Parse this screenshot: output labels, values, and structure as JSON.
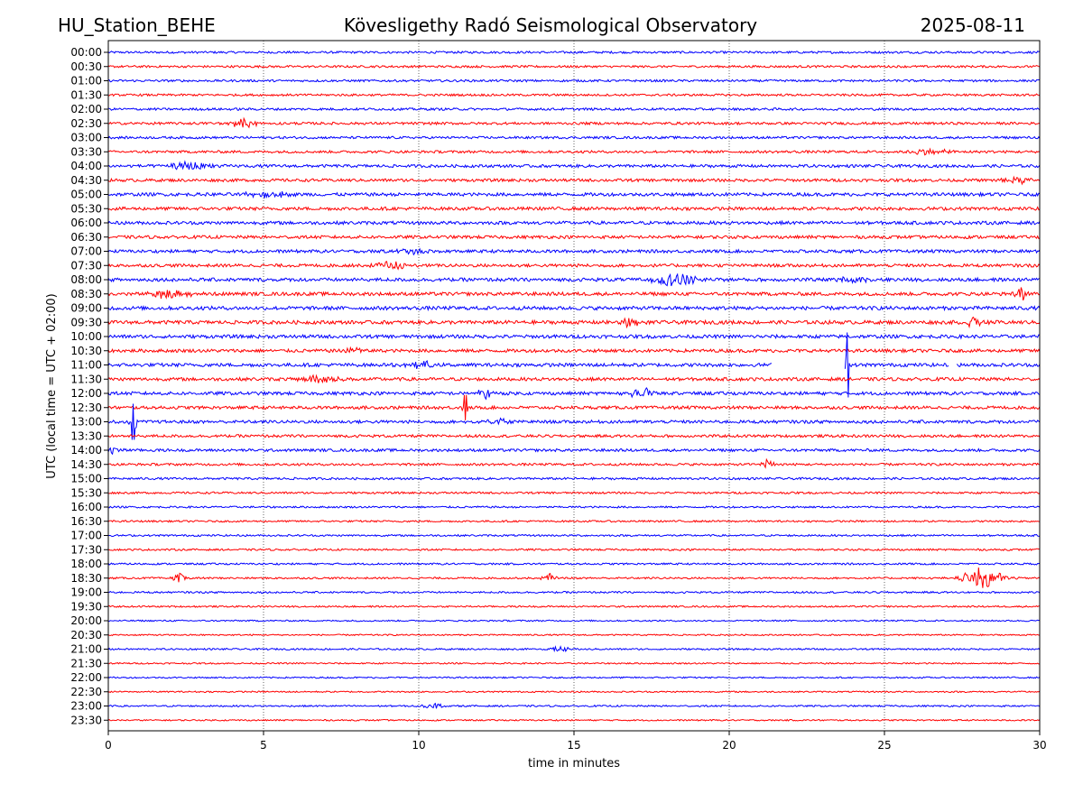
{
  "header": {
    "station": "HU_Station_BEHE",
    "observatory": "Kövesligethy Radó Seismological Observatory",
    "date": "2025-08-11"
  },
  "chart_data": {
    "type": "line",
    "title": "Kövesligethy Radó Seismological Observatory",
    "xlabel": "time in minutes",
    "ylabel": "UTC (local time = UTC + 02:00)",
    "xlim": [
      0,
      30
    ],
    "x_ticks": [
      "0",
      "5",
      "10",
      "15",
      "20",
      "25",
      "30"
    ],
    "grid": "vertical dotted",
    "colors": {
      "even_rows": "#0000ff",
      "odd_rows": "#ff0000"
    },
    "rows": [
      "00:00",
      "00:30",
      "01:00",
      "01:30",
      "02:00",
      "02:30",
      "03:00",
      "03:30",
      "04:00",
      "04:30",
      "05:00",
      "05:30",
      "06:00",
      "06:30",
      "07:00",
      "07:30",
      "08:00",
      "08:30",
      "09:00",
      "09:30",
      "10:00",
      "10:30",
      "11:00",
      "11:30",
      "12:00",
      "12:30",
      "13:00",
      "13:30",
      "14:00",
      "14:30",
      "15:00",
      "15:30",
      "16:00",
      "16:30",
      "17:00",
      "17:30",
      "18:00",
      "18:30",
      "19:00",
      "19:30",
      "20:00",
      "20:30",
      "21:00",
      "21:30",
      "22:00",
      "22:30",
      "23:00",
      "23:30"
    ],
    "noise_levels": [
      1.2,
      1.2,
      1.2,
      1.2,
      1.3,
      1.4,
      1.3,
      1.4,
      1.6,
      1.6,
      1.8,
      1.8,
      1.8,
      1.7,
      1.7,
      1.7,
      1.9,
      1.9,
      2.0,
      2.0,
      1.9,
      1.8,
      1.9,
      1.8,
      1.8,
      1.7,
      1.7,
      1.5,
      1.5,
      1.3,
      1.2,
      1.1,
      1.0,
      1.0,
      1.0,
      1.0,
      1.0,
      1.0,
      1.0,
      0.9,
      0.8,
      0.8,
      0.9,
      0.8,
      0.8,
      0.8,
      0.9,
      0.8
    ],
    "events": [
      {
        "row": "02:30",
        "minute": 4.4,
        "amplitude": 5,
        "width": 0.4
      },
      {
        "row": "03:30",
        "minute": 26.5,
        "amplitude": 3,
        "width": 0.6
      },
      {
        "row": "04:00",
        "minute": 2.7,
        "amplitude": 5,
        "width": 0.6
      },
      {
        "row": "04:30",
        "minute": 29.2,
        "amplitude": 4,
        "width": 0.5
      },
      {
        "row": "05:00",
        "minute": 5.2,
        "amplitude": 3,
        "width": 0.8
      },
      {
        "row": "07:00",
        "minute": 9.8,
        "amplitude": 4,
        "width": 0.4
      },
      {
        "row": "07:30",
        "minute": 9.2,
        "amplitude": 5,
        "width": 0.5
      },
      {
        "row": "08:00",
        "minute": 18.3,
        "amplitude": 7,
        "width": 0.7
      },
      {
        "row": "08:00",
        "minute": 24.0,
        "amplitude": 4,
        "width": 0.4
      },
      {
        "row": "08:30",
        "minute": 2.0,
        "amplitude": 5,
        "width": 0.6
      },
      {
        "row": "08:30",
        "minute": 29.4,
        "amplitude": 8,
        "width": 0.15
      },
      {
        "row": "09:30",
        "minute": 16.8,
        "amplitude": 5,
        "width": 0.3
      },
      {
        "row": "09:30",
        "minute": 27.9,
        "amplitude": 6,
        "width": 0.25
      },
      {
        "row": "10:30",
        "minute": 7.9,
        "amplitude": 6,
        "width": 0.2
      },
      {
        "row": "11:00",
        "minute": 10.0,
        "amplitude": 4,
        "width": 0.5
      },
      {
        "row": "11:00",
        "minute": 23.8,
        "amplitude": 36,
        "width": 0.05
      },
      {
        "row": "11:30",
        "minute": 6.8,
        "amplitude": 5,
        "width": 0.5
      },
      {
        "row": "12:00",
        "minute": 12.1,
        "amplitude": 8,
        "width": 0.2
      },
      {
        "row": "12:00",
        "minute": 17.2,
        "amplitude": 5,
        "width": 0.4
      },
      {
        "row": "12:30",
        "minute": 11.5,
        "amplitude": 14,
        "width": 0.08
      },
      {
        "row": "13:00",
        "minute": 0.8,
        "amplitude": 20,
        "width": 0.1
      },
      {
        "row": "13:00",
        "minute": 12.6,
        "amplitude": 5,
        "width": 0.3
      },
      {
        "row": "14:00",
        "minute": 0.2,
        "amplitude": 5,
        "width": 0.2
      },
      {
        "row": "14:30",
        "minute": 21.3,
        "amplitude": 7,
        "width": 0.2
      },
      {
        "row": "18:30",
        "minute": 2.3,
        "amplitude": 5,
        "width": 0.2
      },
      {
        "row": "18:30",
        "minute": 14.2,
        "amplitude": 5,
        "width": 0.2
      },
      {
        "row": "18:30",
        "minute": 28.2,
        "amplitude": 13,
        "width": 0.6
      },
      {
        "row": "21:00",
        "minute": 14.6,
        "amplitude": 3,
        "width": 0.3
      },
      {
        "row": "23:00",
        "minute": 10.5,
        "amplitude": 3,
        "width": 0.3
      }
    ],
    "gaps": [
      {
        "row": "11:00",
        "from": 21.4,
        "to": 23.7
      },
      {
        "row": "11:00",
        "from": 27.1,
        "to": 27.3
      }
    ]
  }
}
